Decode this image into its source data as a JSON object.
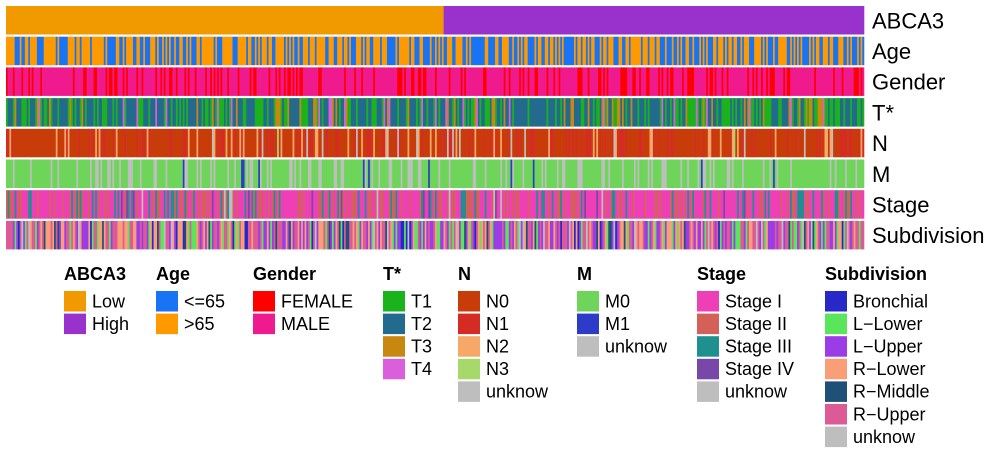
{
  "chart_data": {
    "type": "heatmap",
    "tracks": [
      {
        "name": "ABCA3",
        "levels": [
          {
            "label": "Low",
            "color": "#F09A00",
            "freq": 0.51
          },
          {
            "label": "High",
            "color": "#9932CC",
            "freq": 0.49
          }
        ],
        "pattern": "sorted"
      },
      {
        "name": "Age",
        "levels": [
          {
            "label": "<=65",
            "color": "#1874F5",
            "freq": 0.45
          },
          {
            "label": ">65",
            "color": "#FF9900",
            "freq": 0.55
          }
        ]
      },
      {
        "name": "Gender",
        "levels": [
          {
            "label": "FEMALE",
            "color": "#FF0000",
            "freq": 0.28
          },
          {
            "label": "MALE",
            "color": "#EE1A8E",
            "freq": 0.72
          }
        ]
      },
      {
        "name": "T*",
        "levels": [
          {
            "label": "T1",
            "color": "#1BB31B",
            "freq": 0.32
          },
          {
            "label": "T2",
            "color": "#236B8E",
            "freq": 0.52
          },
          {
            "label": "T3",
            "color": "#C9870F",
            "freq": 0.11
          },
          {
            "label": "T4",
            "color": "#DA5FDA",
            "freq": 0.05
          }
        ]
      },
      {
        "name": "N",
        "levels": [
          {
            "label": "N0",
            "color": "#C83C0A",
            "freq": 0.65
          },
          {
            "label": "N1",
            "color": "#D42C24",
            "freq": 0.19
          },
          {
            "label": "N2",
            "color": "#F5A868",
            "freq": 0.12
          },
          {
            "label": "N3",
            "color": "#A6D96A",
            "freq": 0.01
          },
          {
            "label": "unknow",
            "color": "#BEBEBE",
            "freq": 0.03
          }
        ]
      },
      {
        "name": "M",
        "levels": [
          {
            "label": "M0",
            "color": "#6ED45A",
            "freq": 0.74
          },
          {
            "label": "M1",
            "color": "#2C3CC8",
            "freq": 0.03
          },
          {
            "label": "unknow",
            "color": "#BEBEBE",
            "freq": 0.23
          }
        ]
      },
      {
        "name": "Stage",
        "levels": [
          {
            "label": "Stage I",
            "color": "#EE3FB6",
            "freq": 0.52
          },
          {
            "label": "Stage II",
            "color": "#D4605A",
            "freq": 0.28
          },
          {
            "label": "Stage III",
            "color": "#1F9090",
            "freq": 0.15
          },
          {
            "label": "Stage IV",
            "color": "#7748A8",
            "freq": 0.03
          },
          {
            "label": "unknow",
            "color": "#BEBEBE",
            "freq": 0.02
          }
        ]
      },
      {
        "name": "Subdivision",
        "levels": [
          {
            "label": "Bronchial",
            "color": "#2828C8",
            "freq": 0.04
          },
          {
            "label": "L−Lower",
            "color": "#5AE65A",
            "freq": 0.15
          },
          {
            "label": "L−Upper",
            "color": "#9B3CE6",
            "freq": 0.22
          },
          {
            "label": "R−Lower",
            "color": "#FA9E78",
            "freq": 0.17
          },
          {
            "label": "R−Middle",
            "color": "#1E5078",
            "freq": 0.07
          },
          {
            "label": "R−Upper",
            "color": "#DC5A96",
            "freq": 0.3
          },
          {
            "label": "unknow",
            "color": "#BEBEBE",
            "freq": 0.05
          }
        ]
      }
    ],
    "n_samples": 500,
    "legend_placement": "bottom"
  }
}
